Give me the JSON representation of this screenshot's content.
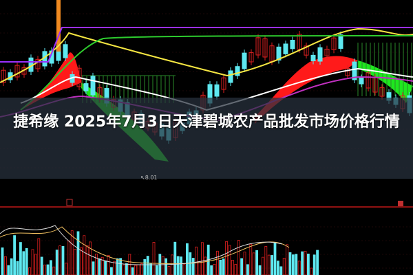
{
  "title": "捷希缘 2025年7月3日天津碧城农产品批发市场价格行情",
  "chart_overlay": {
    "low_price_label": "8.01"
  },
  "colors": {
    "background": "#000000",
    "up": "#e02020",
    "down": "#5ee8f0",
    "ma_yellow": "#f5e642",
    "ma_green": "#2ecc2e",
    "ma_purple": "#9b30ff",
    "ma_white": "#ffffff",
    "fill_red": "#ff1a1a",
    "fill_green": "#1ee81e"
  }
}
